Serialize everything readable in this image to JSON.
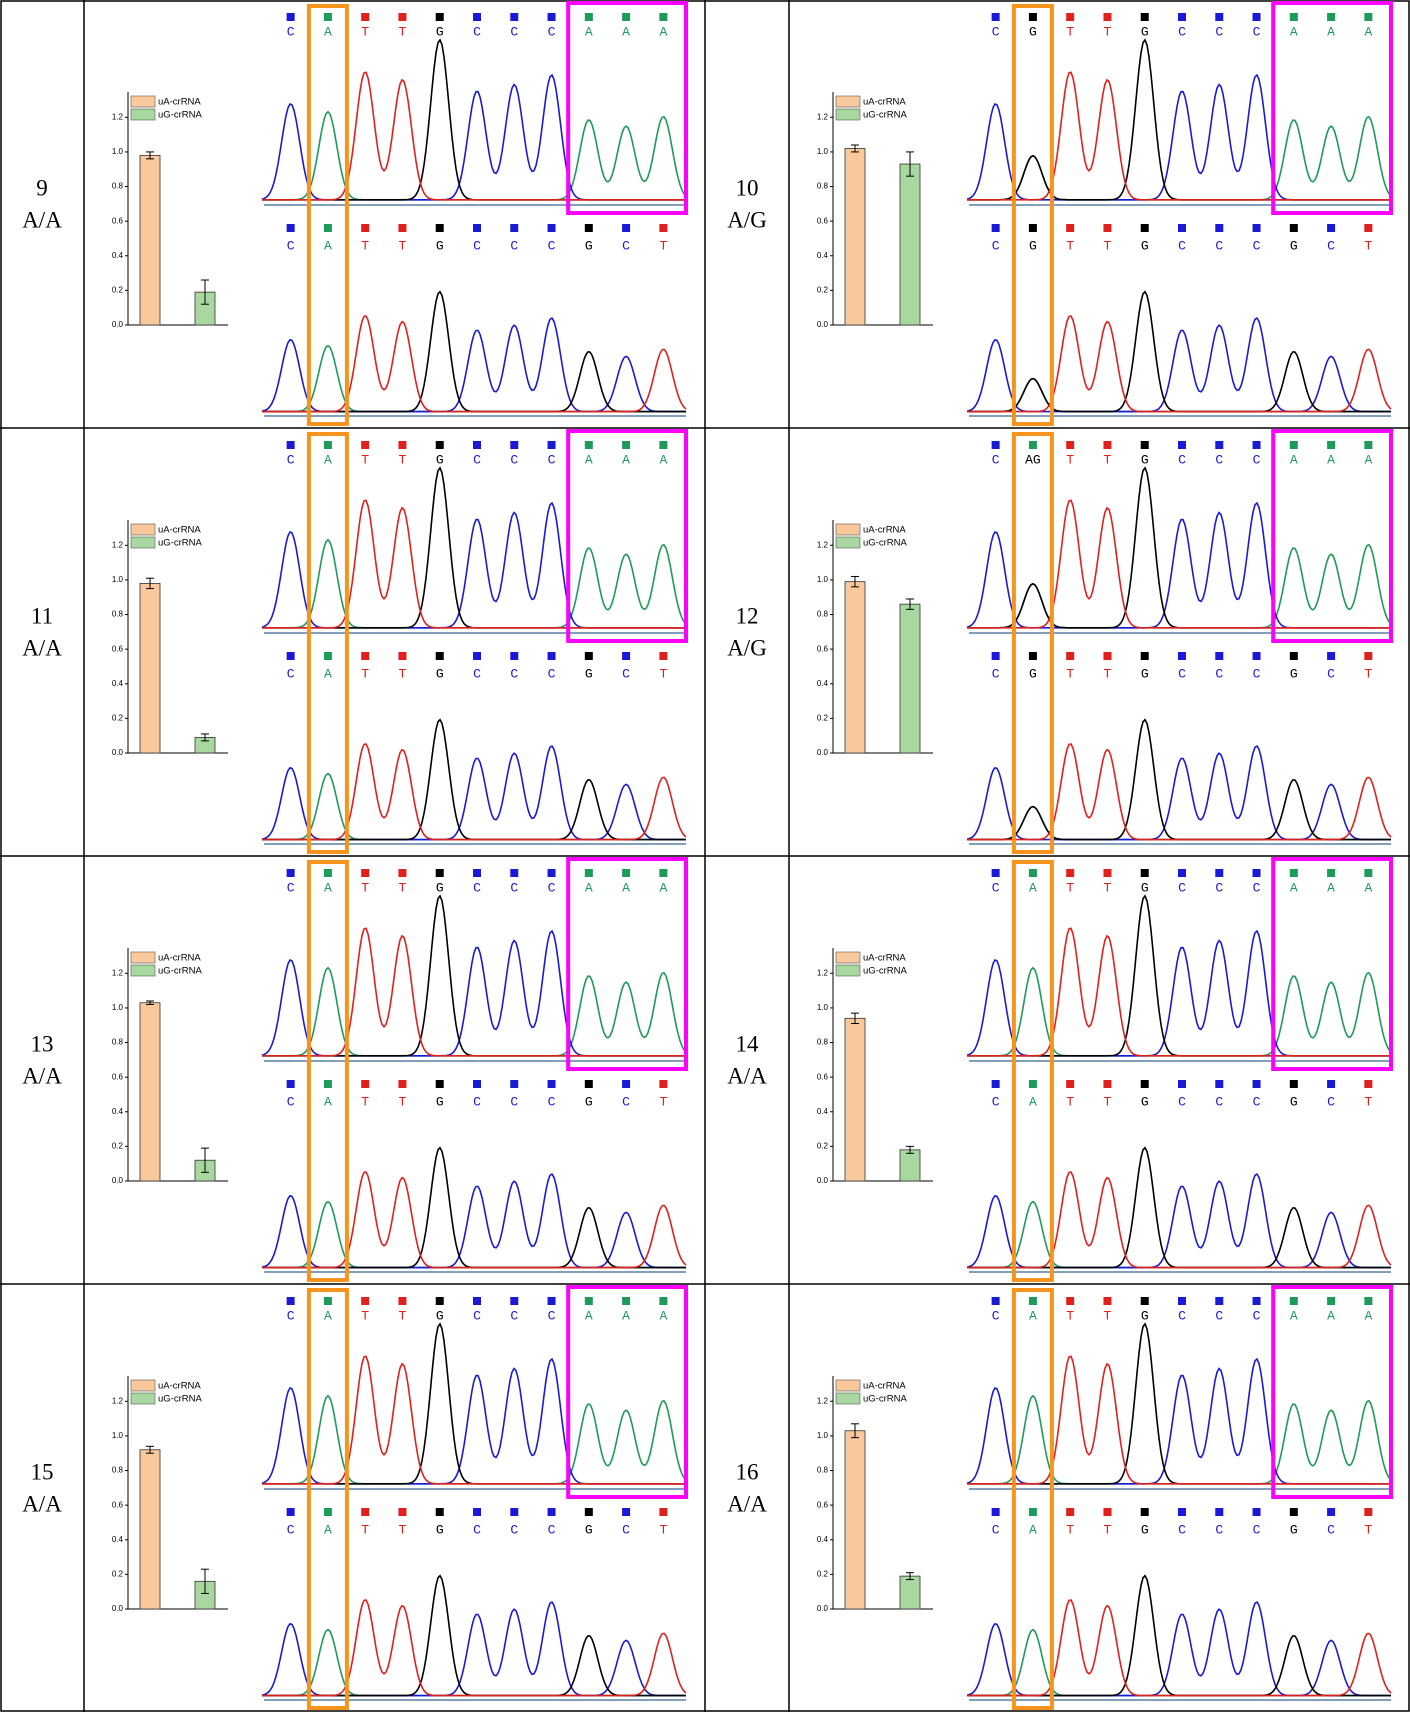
{
  "samples": [
    {
      "id": "9",
      "genotype": "A/A",
      "top": [
        "C",
        "A",
        "T",
        "T",
        "G",
        "C",
        "C",
        "C",
        "A",
        "A",
        "A"
      ],
      "bottom": [
        "C",
        "A",
        "T",
        "T",
        "G",
        "C",
        "C",
        "C",
        "G",
        "C",
        "T"
      ]
    },
    {
      "id": "10",
      "genotype": "A/G",
      "top": [
        "C",
        "G",
        "T",
        "T",
        "G",
        "C",
        "C",
        "C",
        "A",
        "A",
        "A"
      ],
      "bottom": [
        "C",
        "G",
        "T",
        "T",
        "G",
        "C",
        "C",
        "C",
        "G",
        "C",
        "T"
      ]
    },
    {
      "id": "11",
      "genotype": "A/A",
      "top": [
        "C",
        "A",
        "T",
        "T",
        "G",
        "C",
        "C",
        "C",
        "A",
        "A",
        "A"
      ],
      "bottom": [
        "C",
        "A",
        "T",
        "T",
        "G",
        "C",
        "C",
        "C",
        "G",
        "C",
        "T"
      ]
    },
    {
      "id": "12",
      "genotype": "A/G",
      "top": [
        "C",
        "AG",
        "T",
        "T",
        "G",
        "C",
        "C",
        "C",
        "A",
        "A",
        "A"
      ],
      "bottom": [
        "C",
        "G",
        "T",
        "T",
        "G",
        "C",
        "C",
        "C",
        "G",
        "C",
        "T"
      ]
    },
    {
      "id": "13",
      "genotype": "A/A",
      "top": [
        "C",
        "A",
        "T",
        "T",
        "G",
        "C",
        "C",
        "C",
        "A",
        "A",
        "A"
      ],
      "bottom": [
        "C",
        "A",
        "T",
        "T",
        "G",
        "C",
        "C",
        "C",
        "G",
        "C",
        "T"
      ]
    },
    {
      "id": "14",
      "genotype": "A/A",
      "top": [
        "C",
        "A",
        "T",
        "T",
        "G",
        "C",
        "C",
        "C",
        "A",
        "A",
        "A"
      ],
      "bottom": [
        "C",
        "A",
        "T",
        "T",
        "G",
        "C",
        "C",
        "C",
        "G",
        "C",
        "T"
      ]
    },
    {
      "id": "15",
      "genotype": "A/A",
      "top": [
        "C",
        "A",
        "T",
        "T",
        "G",
        "C",
        "C",
        "C",
        "A",
        "A",
        "A"
      ],
      "bottom": [
        "C",
        "A",
        "T",
        "T",
        "G",
        "C",
        "C",
        "C",
        "G",
        "C",
        "T"
      ]
    },
    {
      "id": "16",
      "genotype": "A/A",
      "top": [
        "C",
        "A",
        "T",
        "T",
        "G",
        "C",
        "C",
        "C",
        "A",
        "A",
        "A"
      ],
      "bottom": [
        "C",
        "A",
        "T",
        "T",
        "G",
        "C",
        "C",
        "C",
        "G",
        "C",
        "T"
      ]
    }
  ],
  "chart_data": [
    {
      "type": "bar",
      "categories": [
        null
      ],
      "ylim": [
        0,
        1.3
      ],
      "yticks": [
        {
          "value": 0,
          "label": "0.0"
        },
        0.2,
        0.4,
        0.6,
        0.8,
        {
          "value": 1,
          "label": "1.0"
        },
        1.2
      ],
      "series": [
        {
          "name": "uA-crRNA",
          "color": "#f9c89b",
          "values": [
            0.98
          ],
          "errors": [
            0.02
          ]
        },
        {
          "name": "uG-crRNA",
          "color": "#a8d8a0",
          "values": [
            0.19
          ],
          "errors": [
            0.07
          ]
        }
      ]
    },
    {
      "type": "bar",
      "categories": [
        null
      ],
      "ylim": [
        0,
        1.3
      ],
      "yticks": [
        {
          "value": 0,
          "label": "0.0"
        },
        0.2,
        0.4,
        0.6,
        0.8,
        {
          "value": 1,
          "label": "1.0"
        },
        1.2
      ],
      "series": [
        {
          "name": "uA-crRNA",
          "color": "#f9c89b",
          "values": [
            1.02
          ],
          "errors": [
            0.02
          ]
        },
        {
          "name": "uG-crRNA",
          "color": "#a8d8a0",
          "values": [
            0.93
          ],
          "errors": [
            0.07
          ]
        }
      ]
    },
    {
      "type": "bar",
      "categories": [
        null
      ],
      "ylim": [
        0,
        1.3
      ],
      "yticks": [
        {
          "value": 0,
          "label": "0.0"
        },
        0.2,
        0.4,
        0.6,
        0.8,
        {
          "value": 1,
          "label": "1.0"
        },
        1.2
      ],
      "series": [
        {
          "name": "uA-crRNA",
          "color": "#f9c89b",
          "values": [
            0.98
          ],
          "errors": [
            0.03
          ]
        },
        {
          "name": "uG-crRNA",
          "color": "#a8d8a0",
          "values": [
            0.09
          ],
          "errors": [
            0.02
          ]
        }
      ]
    },
    {
      "type": "bar",
      "categories": [
        null
      ],
      "ylim": [
        0,
        1.3
      ],
      "yticks": [
        {
          "value": 0,
          "label": "0.0"
        },
        0.2,
        0.4,
        0.6,
        0.8,
        {
          "value": 1,
          "label": "1.0"
        },
        1.2
      ],
      "series": [
        {
          "name": "uA-crRNA",
          "color": "#f9c89b",
          "values": [
            0.99
          ],
          "errors": [
            0.03
          ]
        },
        {
          "name": "uG-crRNA",
          "color": "#a8d8a0",
          "values": [
            0.86
          ],
          "errors": [
            0.03
          ]
        }
      ]
    },
    {
      "type": "bar",
      "categories": [
        null
      ],
      "ylim": [
        0,
        1.3
      ],
      "yticks": [
        {
          "value": 0,
          "label": "0.0"
        },
        0.2,
        0.4,
        0.6,
        0.8,
        {
          "value": 1,
          "label": "1.0"
        },
        1.2
      ],
      "series": [
        {
          "name": "uA-crRNA",
          "color": "#f9c89b",
          "values": [
            1.03
          ],
          "errors": [
            0.01
          ]
        },
        {
          "name": "uG-crRNA",
          "color": "#a8d8a0",
          "values": [
            0.12
          ],
          "errors": [
            0.07
          ]
        }
      ]
    },
    {
      "type": "bar",
      "categories": [
        null
      ],
      "ylim": [
        0,
        1.3
      ],
      "yticks": [
        {
          "value": 0,
          "label": "0.0"
        },
        0.2,
        0.4,
        0.6,
        0.8,
        {
          "value": 1,
          "label": "1.0"
        },
        1.2
      ],
      "series": [
        {
          "name": "uA-crRNA",
          "color": "#f9c89b",
          "values": [
            0.94
          ],
          "errors": [
            0.03
          ]
        },
        {
          "name": "uG-crRNA",
          "color": "#a8d8a0",
          "values": [
            0.18
          ],
          "errors": [
            0.02
          ]
        }
      ]
    },
    {
      "type": "bar",
      "categories": [
        null
      ],
      "ylim": [
        0,
        1.3
      ],
      "yticks": [
        {
          "value": 0,
          "label": "0.0"
        },
        0.2,
        0.4,
        0.6,
        0.8,
        {
          "value": 1,
          "label": "1.0"
        },
        1.2
      ],
      "series": [
        {
          "name": "uA-crRNA",
          "color": "#f9c89b",
          "values": [
            0.92
          ],
          "errors": [
            0.02
          ]
        },
        {
          "name": "uG-crRNA",
          "color": "#a8d8a0",
          "values": [
            0.16
          ],
          "errors": [
            0.07
          ]
        }
      ]
    },
    {
      "type": "bar",
      "categories": [
        null
      ],
      "ylim": [
        0,
        1.3
      ],
      "yticks": [
        {
          "value": 0,
          "label": "0.0"
        },
        0.2,
        0.4,
        0.6,
        0.8,
        {
          "value": 1,
          "label": "1.0"
        },
        1.2
      ],
      "series": [
        {
          "name": "uA-crRNA",
          "color": "#f9c89b",
          "values": [
            1.03
          ],
          "errors": [
            0.04
          ]
        },
        {
          "name": "uG-crRNA",
          "color": "#a8d8a0",
          "values": [
            0.19
          ],
          "errors": [
            0.02
          ]
        }
      ]
    }
  ]
}
